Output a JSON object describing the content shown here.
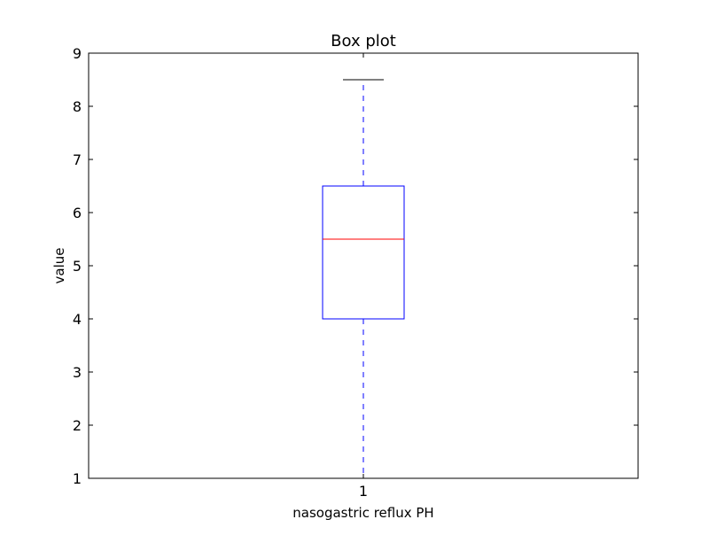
{
  "chart_data": {
    "type": "box",
    "title": "Box plot",
    "xlabel": "nasogastric reflux PH",
    "ylabel": "value",
    "categories": [
      "1"
    ],
    "ylim": [
      1,
      9
    ],
    "yticks": [
      "1",
      "2",
      "3",
      "4",
      "5",
      "6",
      "7",
      "8",
      "9"
    ],
    "grid": false,
    "box": {
      "whisker_low": 1,
      "q1": 4,
      "median": 5.5,
      "q3": 6.5,
      "whisker_high": 8.5
    },
    "colors": {
      "box": "#0000ff",
      "median": "#ff0000",
      "whisker": "#0000ff",
      "cap": "#000000",
      "frame": "#000000"
    }
  }
}
